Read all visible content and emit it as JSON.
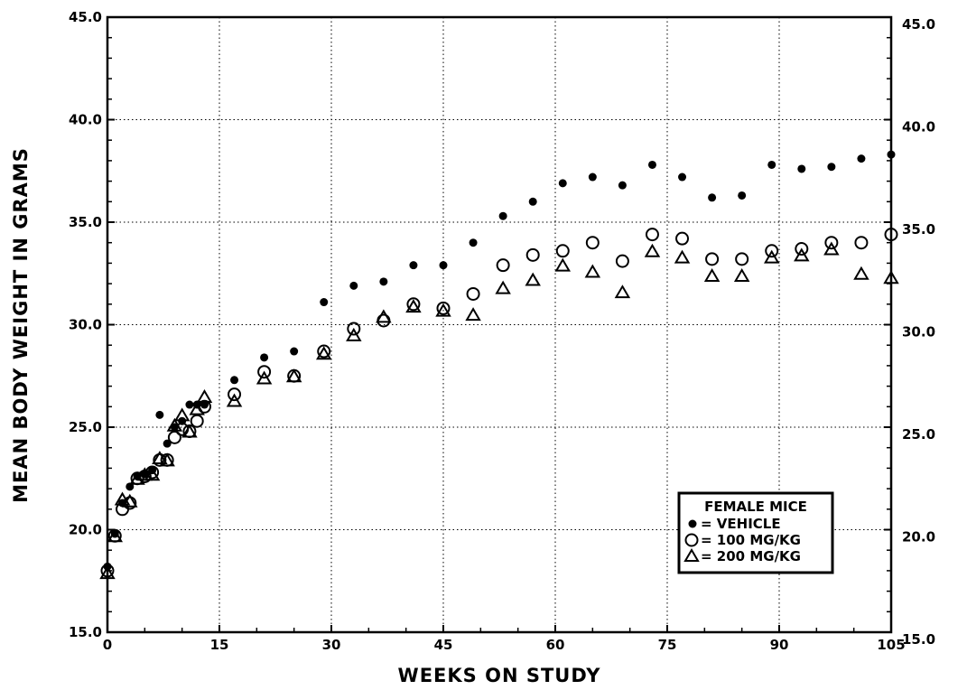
{
  "chart_data": {
    "type": "scatter",
    "xlabel": "WEEKS ON STUDY",
    "ylabel": "MEAN BODY WEIGHT IN GRAMS",
    "xlim": [
      0,
      105
    ],
    "ylim": [
      15,
      45
    ],
    "x_ticks": [
      "0",
      "15",
      "30",
      "45",
      "60",
      "75",
      "90",
      "105"
    ],
    "y_ticks_left": [
      "15.0",
      "20.0",
      "25.0",
      "30.0",
      "35.0",
      "40.0",
      "45.0"
    ],
    "y_ticks_right": [
      "15.0",
      "20.0",
      "25.0",
      "30.0",
      "35.0",
      "40.0",
      "45.0"
    ],
    "grid": true,
    "legend": {
      "title": "FEMALE MICE",
      "placement": "lower-right",
      "entries": [
        {
          "marker": "filled-circle",
          "label": "= VEHICLE"
        },
        {
          "marker": "open-circle",
          "label": "= 100 MG/KG"
        },
        {
          "marker": "open-triangle",
          "label": "= 200 MG/KG"
        }
      ]
    },
    "series": [
      {
        "name": "VEHICLE",
        "marker": "filled-circle",
        "points": [
          [
            0,
            18.2
          ],
          [
            1,
            19.8
          ],
          [
            2,
            21.3
          ],
          [
            3,
            22.1
          ],
          [
            4,
            22.6
          ],
          [
            5,
            22.7
          ],
          [
            6,
            22.9
          ],
          [
            7,
            25.6
          ],
          [
            8,
            24.2
          ],
          [
            9,
            25.0
          ],
          [
            10,
            25.3
          ],
          [
            11,
            26.1
          ],
          [
            12,
            26.1
          ],
          [
            13,
            26.1
          ],
          [
            17,
            27.3
          ],
          [
            21,
            28.4
          ],
          [
            25,
            28.7
          ],
          [
            29,
            31.1
          ],
          [
            33,
            31.9
          ],
          [
            37,
            32.1
          ],
          [
            41,
            32.9
          ],
          [
            45,
            32.9
          ],
          [
            49,
            34.0
          ],
          [
            53,
            35.3
          ],
          [
            57,
            36.0
          ],
          [
            61,
            36.9
          ],
          [
            65,
            37.2
          ],
          [
            69,
            36.8
          ],
          [
            73,
            37.8
          ],
          [
            77,
            37.2
          ],
          [
            81,
            36.2
          ],
          [
            85,
            36.3
          ],
          [
            89,
            37.8
          ],
          [
            93,
            37.6
          ],
          [
            97,
            37.7
          ],
          [
            101,
            38.1
          ],
          [
            105,
            38.3
          ]
        ]
      },
      {
        "name": "100 MG/KG",
        "marker": "open-circle",
        "points": [
          [
            0,
            18.0
          ],
          [
            1,
            19.7
          ],
          [
            2,
            21.0
          ],
          [
            3,
            21.3
          ],
          [
            4,
            22.5
          ],
          [
            5,
            22.6
          ],
          [
            6,
            22.8
          ],
          [
            7,
            23.4
          ],
          [
            8,
            23.4
          ],
          [
            9,
            24.5
          ],
          [
            10,
            24.9
          ],
          [
            11,
            24.8
          ],
          [
            12,
            25.3
          ],
          [
            13,
            26.0
          ],
          [
            17,
            26.6
          ],
          [
            21,
            27.7
          ],
          [
            25,
            27.5
          ],
          [
            29,
            28.7
          ],
          [
            33,
            29.8
          ],
          [
            37,
            30.2
          ],
          [
            41,
            31.0
          ],
          [
            45,
            30.8
          ],
          [
            49,
            31.5
          ],
          [
            53,
            32.9
          ],
          [
            57,
            33.4
          ],
          [
            61,
            33.6
          ],
          [
            65,
            34.0
          ],
          [
            69,
            33.1
          ],
          [
            73,
            34.4
          ],
          [
            77,
            34.2
          ],
          [
            81,
            33.2
          ],
          [
            85,
            33.2
          ],
          [
            89,
            33.6
          ],
          [
            93,
            33.7
          ],
          [
            97,
            34.0
          ],
          [
            101,
            34.0
          ],
          [
            105,
            34.4
          ]
        ]
      },
      {
        "name": "200 MG/KG",
        "marker": "open-triangle",
        "points": [
          [
            0,
            17.9
          ],
          [
            1,
            19.7
          ],
          [
            2,
            21.5
          ],
          [
            3,
            21.4
          ],
          [
            4,
            22.5
          ],
          [
            5,
            22.7
          ],
          [
            6,
            22.7
          ],
          [
            7,
            23.5
          ],
          [
            8,
            23.4
          ],
          [
            9,
            25.1
          ],
          [
            10,
            25.6
          ],
          [
            11,
            24.8
          ],
          [
            12,
            25.9
          ],
          [
            13,
            26.5
          ],
          [
            17,
            26.3
          ],
          [
            21,
            27.4
          ],
          [
            25,
            27.5
          ],
          [
            29,
            28.6
          ],
          [
            33,
            29.5
          ],
          [
            37,
            30.4
          ],
          [
            41,
            30.9
          ],
          [
            45,
            30.7
          ],
          [
            49,
            30.5
          ],
          [
            53,
            31.8
          ],
          [
            57,
            32.2
          ],
          [
            61,
            32.9
          ],
          [
            65,
            32.6
          ],
          [
            69,
            31.6
          ],
          [
            73,
            33.6
          ],
          [
            77,
            33.3
          ],
          [
            81,
            32.4
          ],
          [
            85,
            32.4
          ],
          [
            89,
            33.3
          ],
          [
            93,
            33.4
          ],
          [
            97,
            33.7
          ],
          [
            101,
            32.5
          ],
          [
            105,
            32.3
          ]
        ]
      }
    ]
  }
}
